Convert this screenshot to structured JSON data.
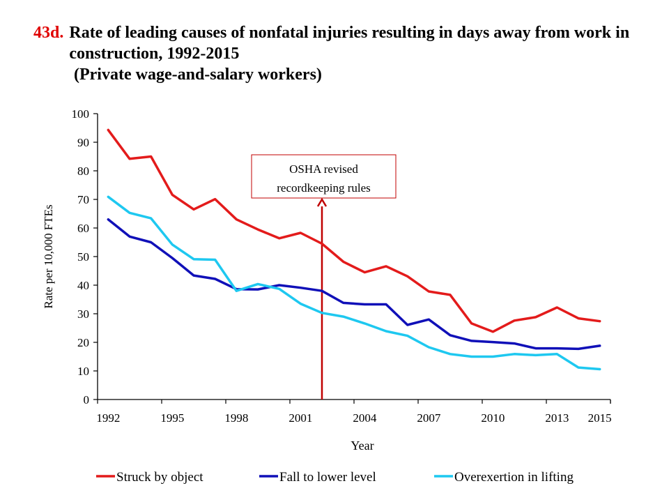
{
  "figure": {
    "number": "43d.",
    "title": "Rate of leading causes of nonfatal injuries resulting in days away from work in construction, 1992-2015",
    "subtitle": "(Private wage-and-salary workers)"
  },
  "annotation": {
    "line1": "OSHA revised",
    "line2": "recordkeeping  rules",
    "year": 2002,
    "color": "#c00000"
  },
  "chart_data": {
    "type": "line",
    "title": "Rate of leading causes of nonfatal injuries resulting in days away from work in construction, 1992-2015",
    "xlabel": "Year",
    "ylabel": "Rate per 10,000 FTEs",
    "x": [
      1992,
      1993,
      1994,
      1995,
      1996,
      1997,
      1998,
      1999,
      2000,
      2001,
      2002,
      2003,
      2004,
      2005,
      2006,
      2007,
      2008,
      2009,
      2010,
      2011,
      2012,
      2013,
      2014,
      2015
    ],
    "xticks": [
      1992,
      1995,
      1998,
      2001,
      2004,
      2007,
      2010,
      2013,
      2015
    ],
    "ylim": [
      0,
      100
    ],
    "yticks": [
      0,
      10,
      20,
      30,
      40,
      50,
      60,
      70,
      80,
      90,
      100
    ],
    "grid": false,
    "legend_position": "bottom",
    "series": [
      {
        "name": "Struck by object",
        "color": "#e31b1b",
        "values": [
          94.3,
          84.2,
          85.0,
          71.6,
          66.5,
          70.1,
          63.0,
          59.5,
          56.4,
          58.3,
          54.5,
          48.2,
          44.5,
          46.6,
          43.1,
          37.8,
          36.6,
          26.6,
          23.7,
          27.6,
          28.8,
          32.2,
          28.4,
          27.4
        ]
      },
      {
        "name": "Fall to lower level",
        "color": "#1010b8",
        "values": [
          63.0,
          57.0,
          55.0,
          49.5,
          43.4,
          42.2,
          38.6,
          38.5,
          40.0,
          39.1,
          38.0,
          33.8,
          33.3,
          33.3,
          26.1,
          28.0,
          22.5,
          20.5,
          20.1,
          19.6,
          17.9,
          17.9,
          17.7,
          18.8
        ]
      },
      {
        "name": "Overexertion in lifting",
        "color": "#1ec8f0",
        "values": [
          70.9,
          65.3,
          63.4,
          54.2,
          49.1,
          48.9,
          38.0,
          40.4,
          38.7,
          33.5,
          30.3,
          29.0,
          26.6,
          23.9,
          22.3,
          18.3,
          15.9,
          15.0,
          15.0,
          15.9,
          15.5,
          15.9,
          11.2,
          10.6
        ]
      }
    ]
  }
}
